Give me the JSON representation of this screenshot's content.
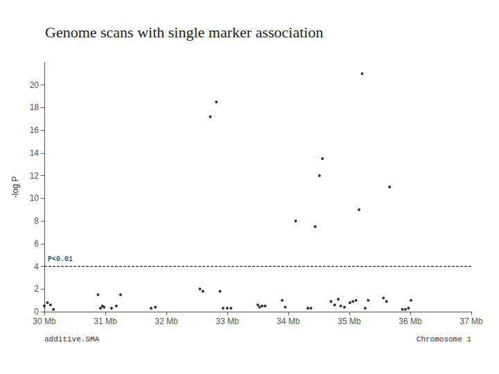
{
  "chart_data": {
    "type": "scatter",
    "title": "Genome scans with single marker association",
    "ylabel": "-log P",
    "annotations": [
      {
        "text": "additive.SMA"
      },
      {
        "text": "Chromosome 1"
      }
    ],
    "hline": {
      "y": 4.0,
      "label": "P<0.01",
      "line_style": "dashed",
      "color": "#000000"
    },
    "color": "#000000",
    "marker": "circle",
    "grid": false,
    "xlim": [
      30,
      37
    ],
    "xticks": [
      {
        "value": 30,
        "label": "30 Mb"
      },
      {
        "value": 31,
        "label": "31 Mb"
      },
      {
        "value": 32,
        "label": "32 Mb"
      },
      {
        "value": 33,
        "label": "33 Mb"
      },
      {
        "value": 34,
        "label": "34 Mb"
      },
      {
        "value": 35,
        "label": "35 Mb"
      },
      {
        "value": 36,
        "label": "36 Mb"
      },
      {
        "value": 37,
        "label": "37 Mb"
      }
    ],
    "ylim": [
      0,
      22
    ],
    "yticks": [
      0,
      2,
      4,
      6,
      8,
      10,
      12,
      14,
      16,
      18,
      20
    ],
    "x": [
      30.0,
      30.05,
      30.1,
      30.15,
      30.88,
      30.92,
      30.95,
      30.98,
      31.1,
      31.18,
      31.25,
      31.75,
      31.82,
      32.55,
      32.6,
      32.72,
      32.82,
      32.88,
      32.93,
      33.0,
      33.06,
      33.5,
      33.53,
      33.57,
      33.62,
      33.9,
      33.95,
      34.12,
      34.32,
      34.37,
      34.44,
      34.51,
      34.56,
      34.7,
      34.76,
      34.82,
      34.86,
      34.92,
      35.01,
      35.06,
      35.11,
      35.16,
      35.21,
      35.26,
      35.31,
      35.56,
      35.61,
      35.66,
      35.87,
      35.92,
      35.97,
      36.01
    ],
    "values": [
      0.5,
      0.8,
      0.6,
      0.2,
      1.5,
      0.3,
      0.5,
      0.4,
      0.3,
      0.5,
      1.5,
      0.3,
      0.4,
      2.0,
      1.8,
      17.2,
      18.5,
      1.8,
      0.3,
      0.3,
      0.3,
      0.6,
      0.4,
      0.5,
      0.5,
      1.0,
      0.4,
      8.0,
      0.3,
      0.3,
      7.5,
      12.0,
      13.5,
      0.9,
      0.6,
      1.1,
      0.5,
      0.4,
      0.8,
      0.9,
      1.0,
      9.0,
      21.0,
      0.3,
      1.0,
      1.2,
      0.9,
      11.0,
      0.2,
      0.2,
      0.3,
      1.0
    ]
  }
}
